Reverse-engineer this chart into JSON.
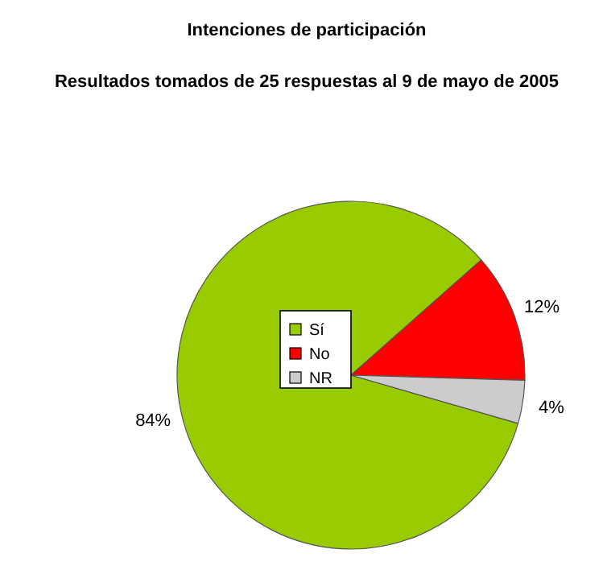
{
  "chart_data": {
    "type": "pie",
    "title": "Intenciones de participación",
    "subtitle": "Resultados tomados de 25 respuestas al 9 de mayo de 2005",
    "categories": [
      "Sí",
      "No",
      "NR"
    ],
    "values": [
      84,
      12,
      4
    ],
    "colors": [
      "#99cc00",
      "#ff0000",
      "#cccccc"
    ],
    "legend": "center",
    "value_labels": [
      "84%",
      "12%",
      "4%"
    ]
  }
}
